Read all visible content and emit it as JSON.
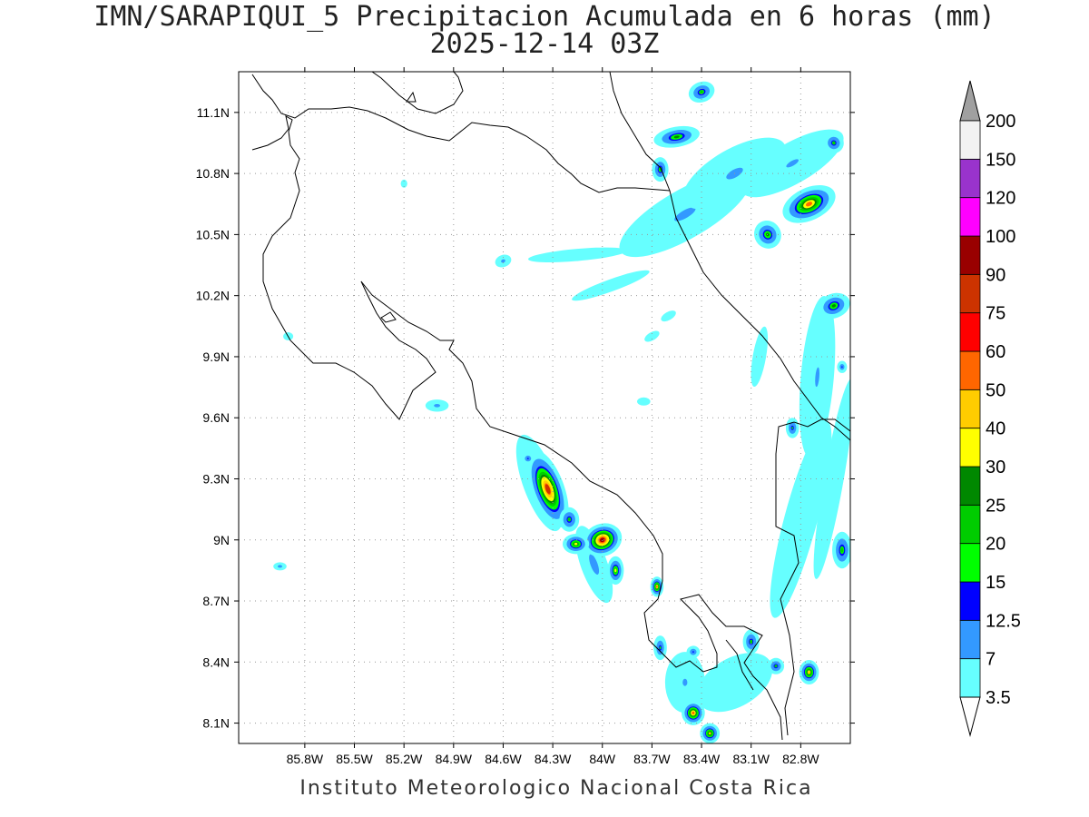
{
  "title": {
    "line1": "IMN/SARAPIQUI_5 Precipitacion Acumulada en 6 horas (mm)",
    "line2": "2025-12-14 03Z"
  },
  "footer": "Instituto Meteorologico Nacional Costa Rica",
  "map": {
    "lon_range": [
      -86.2,
      -82.5
    ],
    "lat_range": [
      8.0,
      11.3
    ],
    "x_ticks": [
      "85.8W",
      "85.5W",
      "85.2W",
      "84.9W",
      "84.6W",
      "84.3W",
      "84W",
      "83.7W",
      "83.4W",
      "83.1W",
      "82.8W"
    ],
    "x_tick_values": [
      -85.8,
      -85.5,
      -85.2,
      -84.9,
      -84.6,
      -84.3,
      -84.0,
      -83.7,
      -83.4,
      -83.1,
      -82.8
    ],
    "y_ticks": [
      "11.1N",
      "10.8N",
      "10.5N",
      "10.2N",
      "9.9N",
      "9.6N",
      "9.3N",
      "9N",
      "8.7N",
      "8.4N",
      "8.1N"
    ],
    "y_tick_values": [
      11.1,
      10.8,
      10.5,
      10.2,
      9.9,
      9.6,
      9.3,
      9.0,
      8.7,
      8.4,
      8.1
    ],
    "grid": "dotted"
  },
  "colorbar": {
    "levels": [
      "3.5",
      "7",
      "12.5",
      "15",
      "20",
      "25",
      "30",
      "40",
      "50",
      "60",
      "75",
      "90",
      "100",
      "120",
      "150",
      "200"
    ],
    "colors": [
      "#66ffff",
      "#3399ff",
      "#0000ff",
      "#00ff00",
      "#00cc00",
      "#008800",
      "#ffff00",
      "#ffcc00",
      "#ff6600",
      "#ff0000",
      "#cc3300",
      "#990000",
      "#ff00ff",
      "#9933cc",
      "#f2f2f2"
    ],
    "under_color": "#ffffff",
    "over_color": "#a0a0a0"
  },
  "precip_cells": [
    {
      "lon": -84.33,
      "lat": 9.25,
      "rx": 0.1,
      "ry": 0.2,
      "rot": -20,
      "peak": 80
    },
    {
      "lon": -84.0,
      "lat": 9.0,
      "rx": 0.12,
      "ry": 0.08,
      "rot": -20,
      "peak": 95
    },
    {
      "lon": -84.16,
      "lat": 8.98,
      "rx": 0.08,
      "ry": 0.05,
      "rot": 0,
      "peak": 35
    },
    {
      "lon": -83.92,
      "lat": 8.85,
      "rx": 0.05,
      "ry": 0.07,
      "rot": 0,
      "peak": 30
    },
    {
      "lon": -84.2,
      "lat": 9.1,
      "rx": 0.06,
      "ry": 0.06,
      "rot": 0,
      "peak": 20
    },
    {
      "lon": -83.45,
      "lat": 8.15,
      "rx": 0.07,
      "ry": 0.06,
      "rot": 0,
      "peak": 55
    },
    {
      "lon": -83.35,
      "lat": 8.05,
      "rx": 0.06,
      "ry": 0.05,
      "rot": 0,
      "peak": 40
    },
    {
      "lon": -82.75,
      "lat": 8.35,
      "rx": 0.06,
      "ry": 0.06,
      "rot": 0,
      "peak": 45
    },
    {
      "lon": -83.67,
      "lat": 8.77,
      "rx": 0.04,
      "ry": 0.05,
      "rot": 0,
      "peak": 50
    },
    {
      "lon": -82.75,
      "lat": 10.65,
      "rx": 0.17,
      "ry": 0.08,
      "rot": -25,
      "peak": 55
    },
    {
      "lon": -83.0,
      "lat": 10.5,
      "rx": 0.08,
      "ry": 0.07,
      "rot": -30,
      "peak": 25
    },
    {
      "lon": -83.55,
      "lat": 10.98,
      "rx": 0.14,
      "ry": 0.05,
      "rot": -10,
      "peak": 25
    },
    {
      "lon": -83.65,
      "lat": 10.82,
      "rx": 0.05,
      "ry": 0.06,
      "rot": 0,
      "peak": 22
    },
    {
      "lon": -83.4,
      "lat": 11.2,
      "rx": 0.08,
      "ry": 0.05,
      "rot": -20,
      "peak": 22
    },
    {
      "lon": -82.6,
      "lat": 10.15,
      "rx": 0.1,
      "ry": 0.06,
      "rot": -20,
      "peak": 25
    },
    {
      "lon": -82.6,
      "lat": 10.95,
      "rx": 0.06,
      "ry": 0.05,
      "rot": -30,
      "peak": 20
    },
    {
      "lon": -82.55,
      "lat": 8.95,
      "rx": 0.06,
      "ry": 0.09,
      "rot": 0,
      "peak": 22
    },
    {
      "lon": -83.1,
      "lat": 8.5,
      "rx": 0.05,
      "ry": 0.06,
      "rot": 0,
      "peak": 20
    },
    {
      "lon": -82.95,
      "lat": 8.38,
      "rx": 0.05,
      "ry": 0.04,
      "rot": 0,
      "peak": 20
    },
    {
      "lon": -82.85,
      "lat": 9.55,
      "rx": 0.04,
      "ry": 0.05,
      "rot": 0,
      "peak": 18
    },
    {
      "lon": -83.65,
      "lat": 8.47,
      "rx": 0.04,
      "ry": 0.06,
      "rot": 0,
      "peak": 18
    },
    {
      "lon": -83.45,
      "lat": 8.45,
      "rx": 0.04,
      "ry": 0.03,
      "rot": 0,
      "peak": 14
    },
    {
      "lon": -84.45,
      "lat": 9.4,
      "rx": 0.04,
      "ry": 0.03,
      "rot": 0,
      "peak": 13
    },
    {
      "lon": -85.95,
      "lat": 8.87,
      "rx": 0.04,
      "ry": 0.02,
      "rot": 0,
      "peak": 10
    },
    {
      "lon": -85.0,
      "lat": 9.66,
      "rx": 0.07,
      "ry": 0.03,
      "rot": 0,
      "peak": 9
    },
    {
      "lon": -84.6,
      "lat": 10.37,
      "rx": 0.05,
      "ry": 0.03,
      "rot": -20,
      "peak": 9
    },
    {
      "lon": -85.9,
      "lat": 10.0,
      "rx": 0.03,
      "ry": 0.02,
      "rot": 0,
      "peak": 6
    },
    {
      "lon": -85.2,
      "lat": 10.75,
      "rx": 0.02,
      "ry": 0.02,
      "rot": 0,
      "peak": 6
    },
    {
      "lon": -83.75,
      "lat": 9.68,
      "rx": 0.04,
      "ry": 0.02,
      "rot": 0,
      "peak": 6
    },
    {
      "lon": -83.7,
      "lat": 10.0,
      "rx": 0.05,
      "ry": 0.02,
      "rot": -30,
      "peak": 6
    },
    {
      "lon": -83.6,
      "lat": 10.1,
      "rx": 0.05,
      "ry": 0.02,
      "rot": -30,
      "peak": 6
    },
    {
      "lon": -82.55,
      "lat": 9.85,
      "rx": 0.03,
      "ry": 0.03,
      "rot": 0,
      "peak": 13
    },
    {
      "lon": -82.7,
      "lat": 9.8,
      "rx": 0.1,
      "ry": 0.4,
      "rot": 5,
      "peak": 7
    },
    {
      "lon": -83.5,
      "lat": 10.6,
      "rx": 0.45,
      "ry": 0.12,
      "rot": -30,
      "peak": 8
    },
    {
      "lon": -83.2,
      "lat": 10.8,
      "rx": 0.35,
      "ry": 0.12,
      "rot": -30,
      "peak": 8
    },
    {
      "lon": -82.85,
      "lat": 10.85,
      "rx": 0.35,
      "ry": 0.1,
      "rot": -30,
      "peak": 7
    },
    {
      "lon": -84.15,
      "lat": 10.4,
      "rx": 0.3,
      "ry": 0.03,
      "rot": -5,
      "peak": 5
    },
    {
      "lon": -83.95,
      "lat": 10.25,
      "rx": 0.25,
      "ry": 0.03,
      "rot": -20,
      "peak": 5
    },
    {
      "lon": -83.05,
      "lat": 9.9,
      "rx": 0.04,
      "ry": 0.15,
      "rot": 10,
      "peak": 6
    },
    {
      "lon": -82.8,
      "lat": 9.1,
      "rx": 0.1,
      "ry": 0.5,
      "rot": 15,
      "peak": 5
    },
    {
      "lon": -82.6,
      "lat": 9.3,
      "rx": 0.06,
      "ry": 0.5,
      "rot": 10,
      "peak": 6
    },
    {
      "lon": -83.2,
      "lat": 8.3,
      "rx": 0.25,
      "ry": 0.12,
      "rot": -30,
      "peak": 6
    },
    {
      "lon": -83.5,
      "lat": 8.3,
      "rx": 0.12,
      "ry": 0.15,
      "rot": 0,
      "peak": 7
    },
    {
      "lon": -84.05,
      "lat": 8.88,
      "rx": 0.08,
      "ry": 0.2,
      "rot": -20,
      "peak": 9
    },
    {
      "lon": -84.38,
      "lat": 9.28,
      "rx": 0.1,
      "ry": 0.25,
      "rot": -20,
      "peak": 12
    }
  ]
}
